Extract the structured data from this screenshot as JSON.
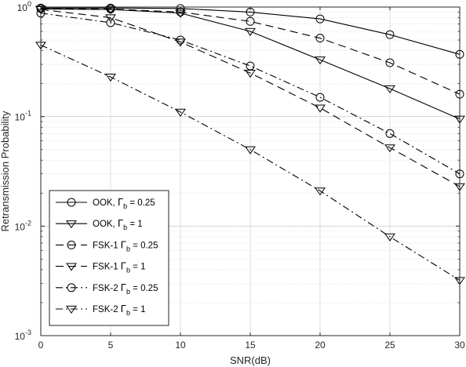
{
  "chart_data": {
    "type": "line",
    "title": "",
    "xlabel": "SNR(dB)",
    "ylabel": "Retransmission Probability",
    "xlim": [
      0,
      30
    ],
    "ylim": [
      0.001,
      1
    ],
    "yscale": "log",
    "grid": true,
    "legend_position": "bottom-left",
    "x": [
      0,
      5,
      10,
      15,
      20,
      25,
      30
    ],
    "x_tick_labels": [
      "0",
      "5",
      "10",
      "15",
      "20",
      "25",
      "30"
    ],
    "y_tick_labels": [
      {
        "base": "10",
        "exp": "-3",
        "value": 0.001
      },
      {
        "base": "10",
        "exp": "-2",
        "value": 0.01
      },
      {
        "base": "10",
        "exp": "-1",
        "value": 0.1
      },
      {
        "base": "10",
        "exp": "0",
        "value": 1
      }
    ],
    "series": [
      {
        "label_main": "OOK, ",
        "label_sym": "Γ",
        "label_sub": "b",
        "label_tail": " = 0.25",
        "marker": "circle",
        "dash": "solid",
        "values": [
          0.98,
          0.98,
          0.97,
          0.9,
          0.78,
          0.56,
          0.37
        ]
      },
      {
        "label_main": "OOK, ",
        "label_sym": "Γ",
        "label_sub": "b",
        "label_tail": " = 1",
        "marker": "triangle",
        "dash": "solid",
        "values": [
          0.96,
          0.95,
          0.88,
          0.6,
          0.33,
          0.18,
          0.095
        ]
      },
      {
        "label_main": "FSK-1 ",
        "label_sym": "Γ",
        "label_sub": "b",
        "label_tail": " = 0.25",
        "marker": "circle",
        "dash": "dashed",
        "values": [
          0.97,
          0.96,
          0.9,
          0.74,
          0.52,
          0.31,
          0.16
        ]
      },
      {
        "label_main": "FSK-1 ",
        "label_sym": "Γ",
        "label_sub": "b",
        "label_tail": " = 1",
        "marker": "triangle",
        "dash": "dashed",
        "values": [
          0.95,
          0.8,
          0.48,
          0.25,
          0.12,
          0.052,
          0.023
        ]
      },
      {
        "label_main": "FSK-2 ",
        "label_sym": "Γ",
        "label_sub": "b",
        "label_tail": " = 0.25",
        "marker": "circle",
        "dash": "dashdot",
        "values": [
          0.88,
          0.72,
          0.5,
          0.29,
          0.15,
          0.07,
          0.03
        ]
      },
      {
        "label_main": "FSK-2 ",
        "label_sym": "Γ",
        "label_sub": "b",
        "label_tail": " = 1",
        "marker": "triangle",
        "dash": "dashdot",
        "values": [
          0.45,
          0.23,
          0.11,
          0.05,
          0.021,
          0.008,
          0.0032
        ]
      }
    ]
  }
}
